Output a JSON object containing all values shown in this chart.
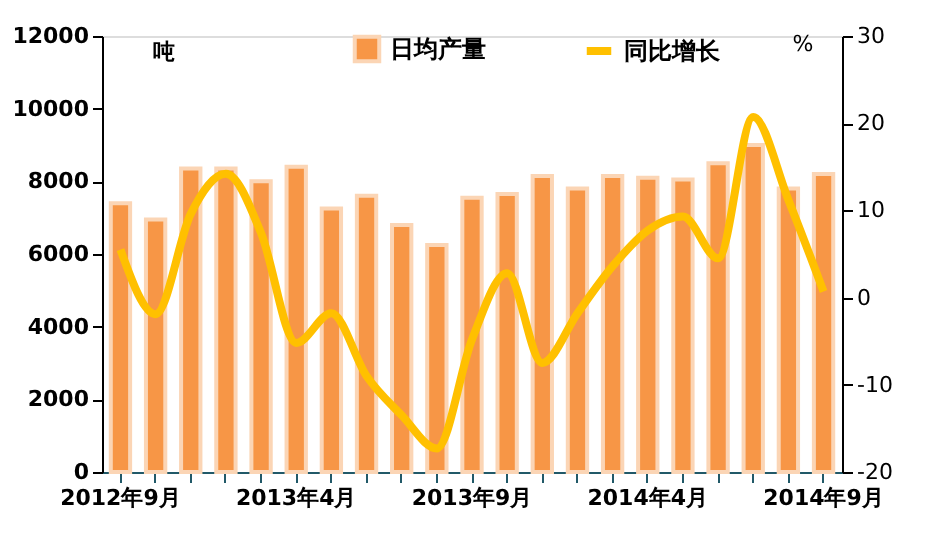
{
  "chart_data": {
    "type": "bar",
    "categories": [
      "2012年9月",
      null,
      null,
      null,
      null,
      "2013年4月",
      null,
      null,
      null,
      null,
      "2013年9月",
      null,
      null,
      null,
      null,
      "2014年4月",
      null,
      null,
      null,
      null,
      "2014年9月"
    ],
    "series": [
      {
        "name": "日均产量",
        "color": "#f79646",
        "values": [
          7400,
          6950,
          8350,
          8350,
          8000,
          8400,
          7250,
          7600,
          6800,
          6250,
          7550,
          7650,
          8150,
          7800,
          8150,
          8100,
          8050,
          8500,
          9000,
          7800,
          8200
        ]
      },
      {
        "name": "同比增长",
        "type": "line",
        "axis": "y2",
        "color": "#ffc000",
        "values": [
          5.5,
          -1.9,
          9.6,
          14.2,
          7.4,
          -5.2,
          -1.8,
          -9,
          -13.5,
          -17.3,
          -4.8,
          2.8,
          -7.5,
          -1.8,
          3.6,
          7.7,
          9.3,
          4.5,
          20.7,
          11.2,
          0.7
        ]
      }
    ],
    "ylabel": "吨",
    "y2label": "%",
    "ylim": [
      0,
      12000
    ],
    "yticks": [
      0,
      2000,
      4000,
      6000,
      8000,
      10000,
      12000
    ],
    "y2lim": [
      -20,
      30
    ],
    "y2ticks": [
      -20,
      -10,
      0,
      10,
      20,
      30
    ],
    "legend": "top",
    "grid": false,
    "marker": "none"
  }
}
